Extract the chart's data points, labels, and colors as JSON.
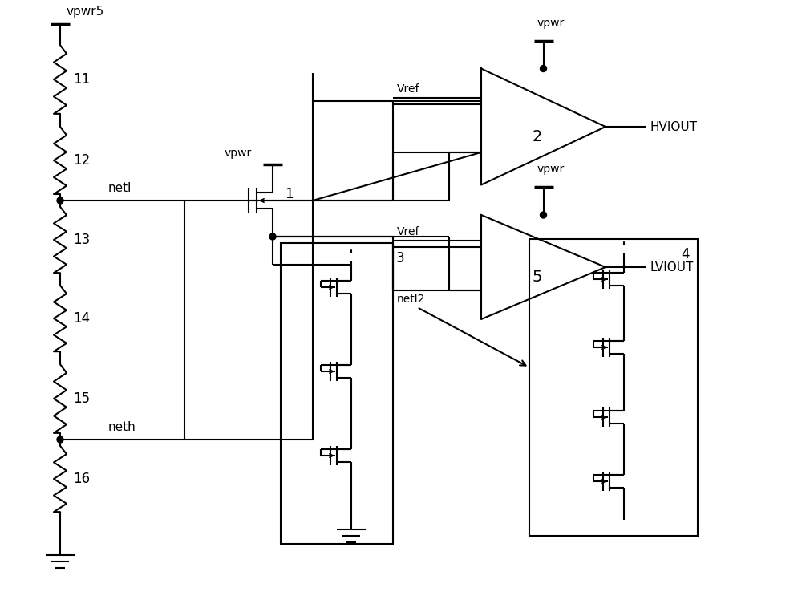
{
  "bg_color": "#ffffff",
  "line_color": "#000000",
  "resistor_labels": [
    "11",
    "12",
    "13",
    "14",
    "15",
    "16"
  ],
  "vpwr5_label": "vpwr5",
  "netl_label": "netl",
  "neth_label": "neth",
  "comp2_label": "2",
  "comp5_label": "5",
  "comp4_label": "4",
  "comp3_label": "3",
  "hviout_label": "HVIOUT",
  "lviout_label": "LVIOUT",
  "vref_label": "Vref",
  "vpwr_label": "vpwr",
  "netl2_label": "netl2",
  "label1": "1",
  "figsize": [
    10.0,
    7.48
  ],
  "dpi": 100
}
